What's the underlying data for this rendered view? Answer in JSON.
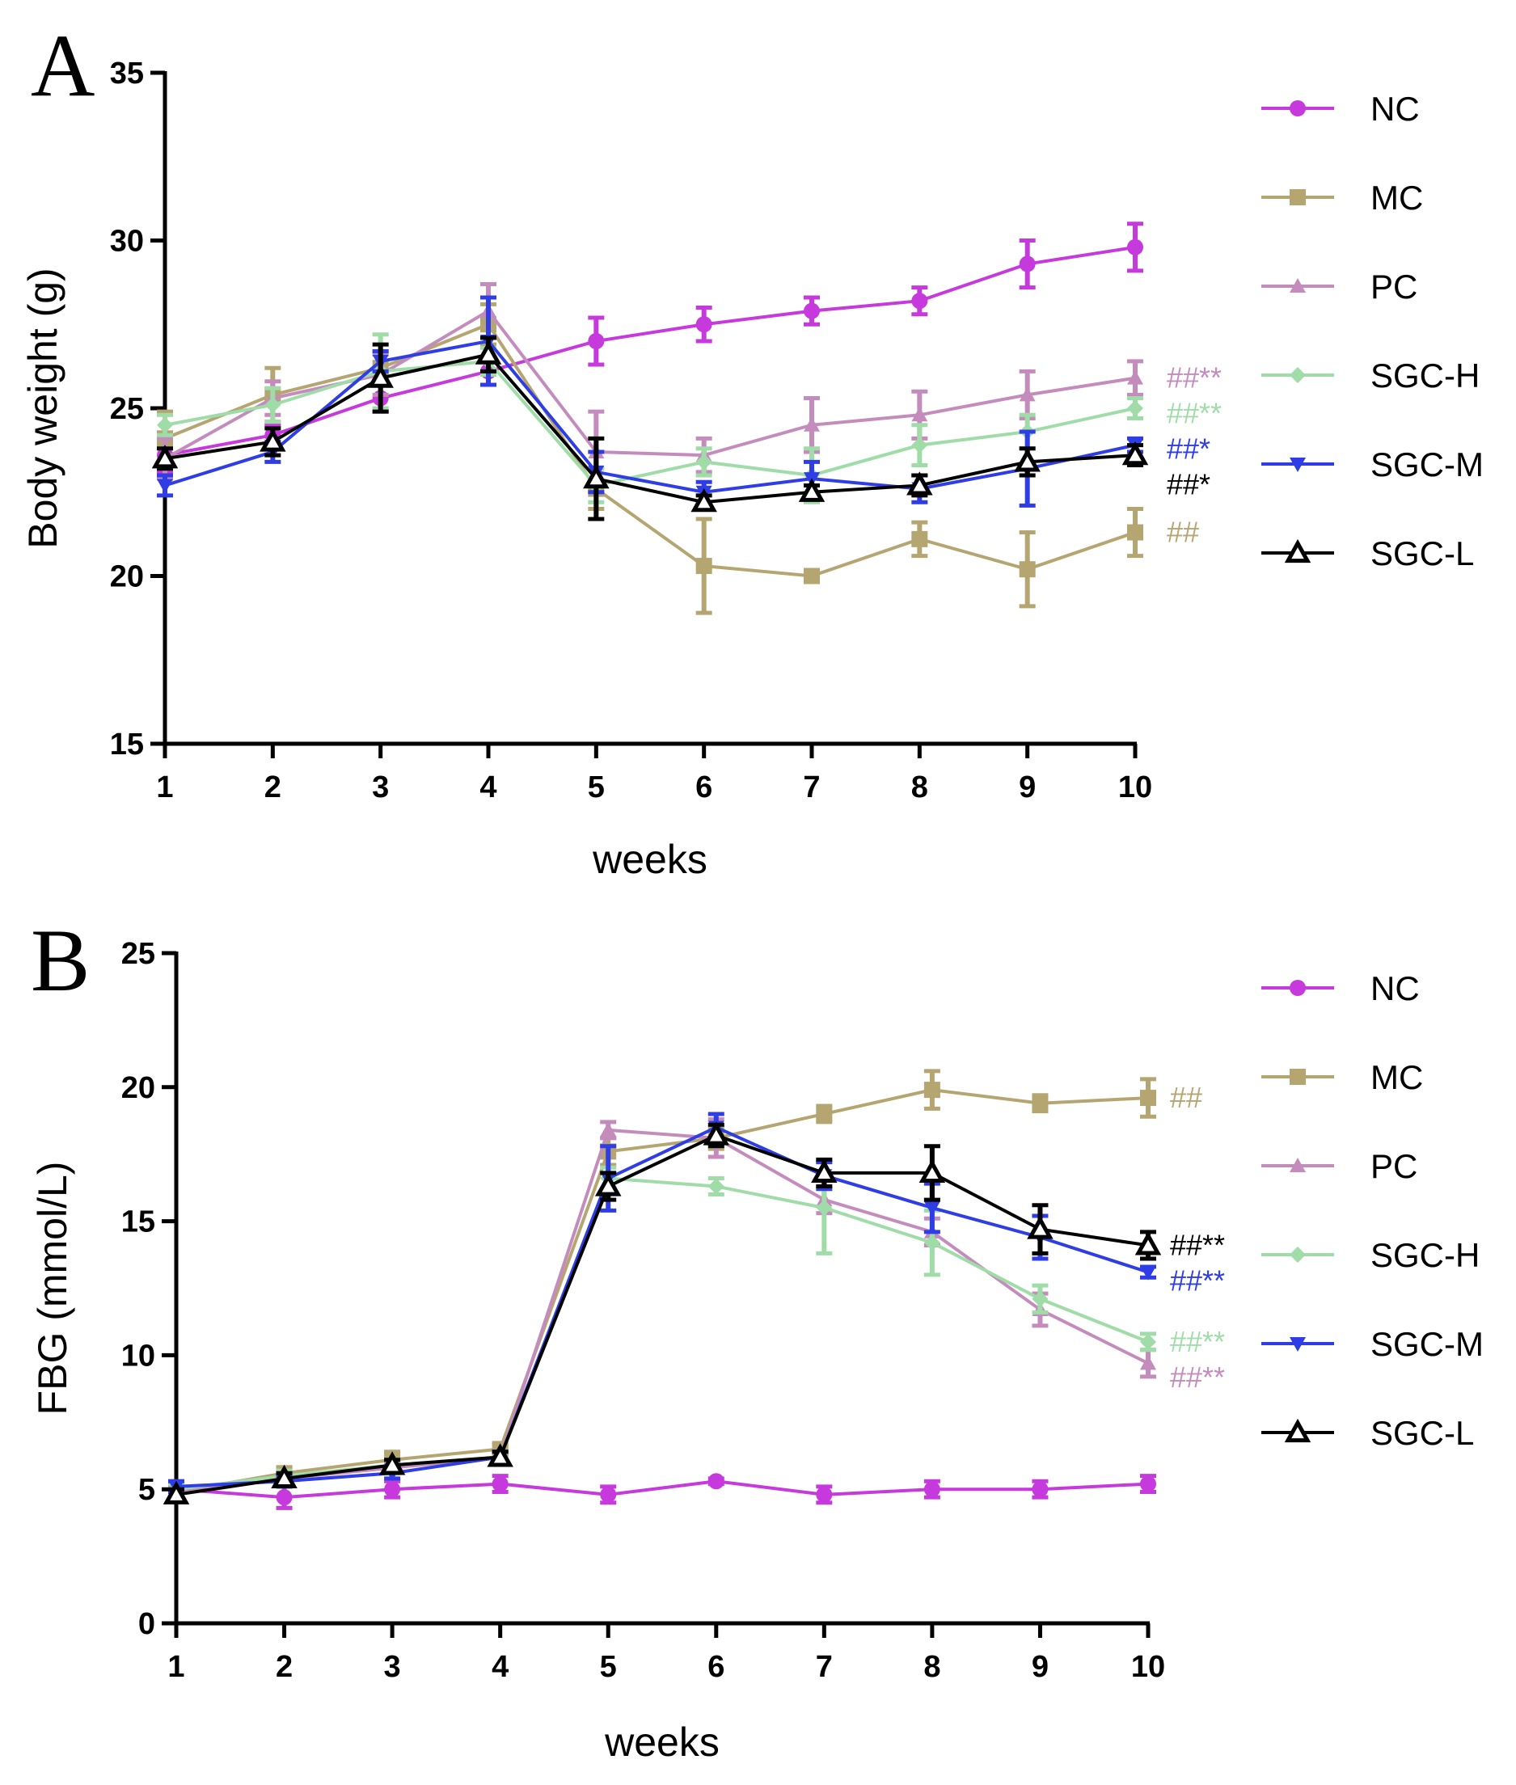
{
  "chart_data": [
    {
      "type": "line",
      "panel": "A",
      "title": "",
      "xlabel": "weeks",
      "ylabel": "Body weight (g)",
      "x": [
        1,
        2,
        3,
        4,
        5,
        6,
        7,
        8,
        9,
        10
      ],
      "xticks": [
        "1",
        "2",
        "3",
        "4",
        "5",
        "6",
        "7",
        "8",
        "9",
        "10"
      ],
      "ylim": [
        15,
        35
      ],
      "yticks": [
        15,
        20,
        25,
        30,
        35
      ],
      "series": [
        {
          "name": "NC",
          "color": "#c639dc",
          "marker": "circle",
          "values": [
            23.6,
            24.2,
            25.3,
            26.1,
            27.0,
            27.5,
            27.9,
            28.2,
            29.3,
            29.8
          ],
          "errors": [
            0.5,
            0.3,
            0.4,
            0.4,
            0.7,
            0.5,
            0.4,
            0.4,
            0.7,
            0.7
          ]
        },
        {
          "name": "MC",
          "color": "#b5a571",
          "marker": "square",
          "values": [
            24.1,
            25.4,
            26.2,
            27.5,
            22.6,
            20.3,
            20.0,
            21.1,
            20.2,
            21.3
          ],
          "errors": [
            0.8,
            0.8,
            0.5,
            0.6,
            0.6,
            1.4,
            0.1,
            0.5,
            1.1,
            0.7
          ]
        },
        {
          "name": "PC",
          "color": "#c48cbd",
          "marker": "triangle-up",
          "values": [
            23.5,
            25.3,
            26.0,
            27.9,
            23.7,
            23.6,
            24.5,
            24.8,
            25.4,
            25.9
          ],
          "errors": [
            0.6,
            0.5,
            0.6,
            0.8,
            1.2,
            0.5,
            0.8,
            0.7,
            0.7,
            0.5
          ]
        },
        {
          "name": "SGC-H",
          "color": "#9fdca8",
          "marker": "diamond",
          "values": [
            24.5,
            25.1,
            26.1,
            26.4,
            22.7,
            23.4,
            23.0,
            23.9,
            24.3,
            25.0
          ],
          "errors": [
            0.3,
            0.5,
            1.1,
            0.4,
            0.5,
            0.4,
            0.8,
            0.6,
            0.5,
            0.3
          ]
        },
        {
          "name": "SGC-M",
          "color": "#2e3de6",
          "marker": "triangle-down",
          "values": [
            22.7,
            23.7,
            26.4,
            27.0,
            23.1,
            22.5,
            22.9,
            22.6,
            23.2,
            23.9
          ],
          "errors": [
            0.3,
            0.3,
            0.3,
            1.3,
            0.6,
            0.3,
            0.5,
            0.4,
            1.1,
            0.2
          ]
        },
        {
          "name": "SGC-L",
          "color": "#000000",
          "marker": "triangle-up-open",
          "values": [
            23.5,
            24.0,
            25.9,
            26.6,
            22.9,
            22.2,
            22.5,
            22.7,
            23.4,
            23.6
          ],
          "errors": [
            0.3,
            0.4,
            1.0,
            0.5,
            1.2,
            0.2,
            0.2,
            0.3,
            0.4,
            0.3
          ]
        }
      ],
      "annotations": [
        {
          "text": "##**",
          "series": "PC",
          "color": "#c48cbd"
        },
        {
          "text": "##**",
          "series": "SGC-H",
          "color": "#9fdca8"
        },
        {
          "text": "##*",
          "series": "SGC-M",
          "color": "#2e3de6"
        },
        {
          "text": "##*",
          "series": "SGC-L",
          "color": "#000000"
        },
        {
          "text": "##",
          "series": "MC",
          "color": "#b5a571"
        }
      ]
    },
    {
      "type": "line",
      "panel": "B",
      "title": "",
      "xlabel": "weeks",
      "ylabel": "FBG (mmol/L)",
      "x": [
        1,
        2,
        3,
        4,
        5,
        6,
        7,
        8,
        9,
        10
      ],
      "xticks": [
        "1",
        "2",
        "3",
        "4",
        "5",
        "6",
        "7",
        "8",
        "9",
        "10"
      ],
      "ylim": [
        0,
        25
      ],
      "yticks": [
        0,
        5,
        10,
        15,
        20,
        25
      ],
      "series": [
        {
          "name": "NC",
          "color": "#c639dc",
          "marker": "circle",
          "values": [
            5.0,
            4.7,
            5.0,
            5.2,
            4.8,
            5.3,
            4.8,
            5.0,
            5.0,
            5.2
          ],
          "errors": [
            0.3,
            0.4,
            0.3,
            0.3,
            0.3,
            0.1,
            0.3,
            0.3,
            0.3,
            0.3
          ]
        },
        {
          "name": "MC",
          "color": "#b5a571",
          "marker": "square",
          "values": [
            4.9,
            5.6,
            6.1,
            6.5,
            17.6,
            18.1,
            19.0,
            19.9,
            19.4,
            19.6
          ],
          "errors": [
            0.2,
            0.2,
            0.3,
            0.2,
            0.5,
            0.4,
            0.3,
            0.7,
            0.3,
            0.7
          ]
        },
        {
          "name": "PC",
          "color": "#c48cbd",
          "marker": "triangle-up",
          "values": [
            4.9,
            5.4,
            5.8,
            6.2,
            18.4,
            18.1,
            15.8,
            14.6,
            11.7,
            9.7
          ],
          "errors": [
            0.2,
            0.2,
            0.2,
            0.2,
            0.3,
            0.7,
            0.5,
            0.5,
            0.6,
            0.5
          ]
        },
        {
          "name": "SGC-H",
          "color": "#9fdca8",
          "marker": "diamond",
          "values": [
            5.0,
            5.5,
            5.9,
            6.2,
            16.6,
            16.3,
            15.5,
            14.2,
            12.1,
            10.5
          ],
          "errors": [
            0.2,
            0.2,
            0.2,
            0.2,
            0.4,
            0.3,
            1.7,
            1.2,
            0.5,
            0.3
          ]
        },
        {
          "name": "SGC-M",
          "color": "#2e3de6",
          "marker": "triangle-down",
          "values": [
            5.1,
            5.3,
            5.6,
            6.2,
            16.6,
            18.5,
            16.7,
            15.5,
            14.4,
            13.1
          ],
          "errors": [
            0.2,
            0.2,
            0.2,
            0.2,
            1.2,
            0.5,
            0.5,
            0.9,
            0.8,
            0.2
          ]
        },
        {
          "name": "SGC-L",
          "color": "#000000",
          "marker": "triangle-up-open",
          "values": [
            4.8,
            5.4,
            5.9,
            6.2,
            16.3,
            18.2,
            16.8,
            16.8,
            14.7,
            14.1
          ],
          "errors": [
            0.2,
            0.2,
            0.2,
            0.2,
            0.5,
            0.4,
            0.5,
            1.0,
            0.9,
            0.5
          ]
        }
      ],
      "annotations": [
        {
          "text": "##",
          "series": "MC",
          "color": "#b5a571"
        },
        {
          "text": "##**",
          "series": "SGC-L",
          "color": "#000000"
        },
        {
          "text": "##**",
          "series": "SGC-M",
          "color": "#2e3de6"
        },
        {
          "text": "##**",
          "series": "SGC-H",
          "color": "#9fdca8"
        },
        {
          "text": "##**",
          "series": "PC",
          "color": "#c48cbd"
        }
      ]
    }
  ]
}
